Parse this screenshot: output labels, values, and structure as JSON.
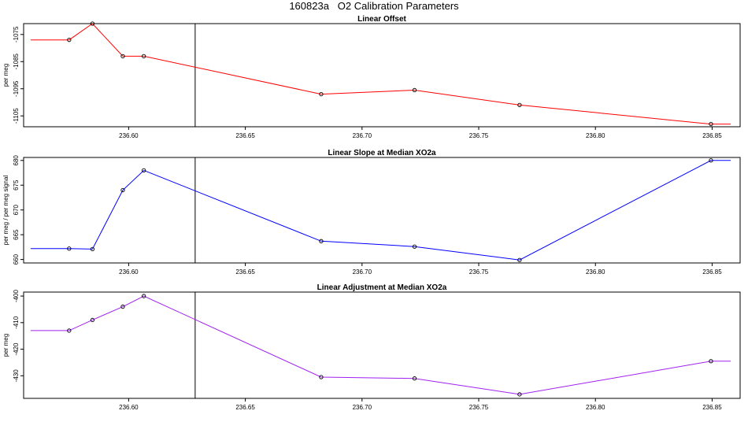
{
  "figure_title": "160823a   O2 Calibration Parameters",
  "chart_data": [
    {
      "type": "line",
      "title": "Linear Offset",
      "ylabel": "per meg",
      "xlabel": "",
      "color": "#ff0000",
      "x": [
        236.5745,
        236.5845,
        236.5975,
        236.6065,
        236.6825,
        236.7225,
        236.7675,
        236.8495
      ],
      "values": [
        -1077,
        -1071,
        -1083,
        -1083,
        -1097,
        -1095.5,
        -1101,
        -1108
      ],
      "xlim": [
        236.555,
        236.862
      ],
      "ylim": [
        -1109,
        -1071
      ],
      "x_ticks": [
        236.6,
        236.65,
        236.7,
        236.75,
        236.8,
        236.85
      ],
      "x_tick_labels": [
        "236.60",
        "236.65",
        "236.70",
        "236.75",
        "236.80",
        "236.85"
      ],
      "y_ticks": [
        -1075,
        -1085,
        -1095,
        -1105
      ],
      "y_tick_labels": [
        "-1075",
        "-1085",
        "-1095",
        "-1105"
      ],
      "vline": 236.6285,
      "start_value": -1077,
      "end_value": -1108
    },
    {
      "type": "line",
      "title": "Linear Slope at Median XO2a",
      "ylabel": "per meg / per meg signal",
      "xlabel": "",
      "color": "#0000ff",
      "x": [
        236.5745,
        236.5845,
        236.5975,
        236.6065,
        236.6825,
        236.7225,
        236.7675,
        236.8495
      ],
      "values": [
        662.2,
        662.1,
        674.0,
        678.0,
        663.7,
        662.6,
        659.9,
        680.0
      ],
      "xlim": [
        236.555,
        236.862
      ],
      "ylim": [
        659.3,
        680.6
      ],
      "x_ticks": [
        236.6,
        236.65,
        236.7,
        236.75,
        236.8,
        236.85
      ],
      "x_tick_labels": [
        "236.60",
        "236.65",
        "236.70",
        "236.75",
        "236.80",
        "236.85"
      ],
      "y_ticks": [
        660,
        665,
        670,
        675,
        680
      ],
      "y_tick_labels": [
        "660",
        "665",
        "670",
        "675",
        "680"
      ],
      "vline": 236.6285,
      "start_value": 662.2,
      "end_value": 680.0
    },
    {
      "type": "line",
      "title": "Linear Adjustment at Median XO2a",
      "ylabel": "per meg",
      "xlabel": "",
      "color": "#a020f0",
      "x": [
        236.5745,
        236.5845,
        236.5975,
        236.6065,
        236.6825,
        236.7225,
        236.7675,
        236.8495
      ],
      "values": [
        -413,
        -409,
        -404,
        -400,
        -430.5,
        -431,
        -437,
        -424.5
      ],
      "xlim": [
        236.555,
        236.862
      ],
      "ylim": [
        -438.5,
        -398.5
      ],
      "x_ticks": [
        236.6,
        236.65,
        236.7,
        236.75,
        236.8,
        236.85
      ],
      "x_tick_labels": [
        "236.60",
        "236.65",
        "236.70",
        "236.75",
        "236.80",
        "236.85"
      ],
      "y_ticks": [
        -400,
        -410,
        -420,
        -430
      ],
      "y_tick_labels": [
        "-400",
        "-410",
        "-420",
        "-430"
      ],
      "vline": 236.6285,
      "start_value": -413,
      "end_value": -424.5
    }
  ]
}
